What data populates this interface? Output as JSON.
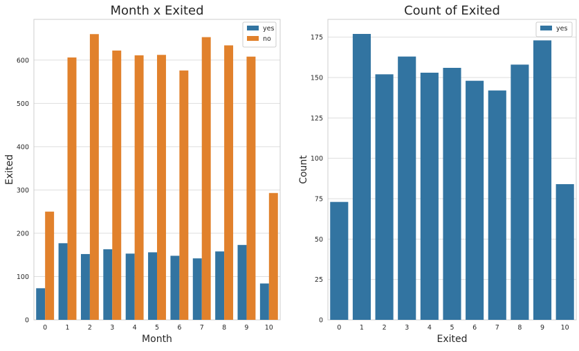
{
  "chart_data": [
    {
      "type": "bar",
      "title": "Month x Exited",
      "xlabel": "Month",
      "ylabel": "Exited",
      "categories": [
        "0",
        "1",
        "2",
        "3",
        "4",
        "5",
        "6",
        "7",
        "8",
        "9",
        "10"
      ],
      "series": [
        {
          "name": "yes",
          "color": "#3274a1",
          "values": [
            73,
            177,
            152,
            163,
            153,
            156,
            148,
            142,
            158,
            173,
            84
          ]
        },
        {
          "name": "no",
          "color": "#e1812c",
          "values": [
            250,
            606,
            660,
            622,
            611,
            612,
            576,
            653,
            634,
            608,
            293
          ]
        }
      ],
      "ylim": [
        0,
        694
      ],
      "yticks": [
        0,
        100,
        200,
        300,
        400,
        500,
        600
      ],
      "grid": true,
      "legend": "top-right"
    },
    {
      "type": "bar",
      "title": "Count of Exited",
      "xlabel": "Exited",
      "ylabel": "Count",
      "categories": [
        "0",
        "1",
        "2",
        "3",
        "4",
        "5",
        "6",
        "7",
        "8",
        "9",
        "10"
      ],
      "series": [
        {
          "name": "yes",
          "color": "#3274a1",
          "values": [
            73,
            177,
            152,
            163,
            153,
            156,
            148,
            142,
            158,
            173,
            84
          ]
        }
      ],
      "ylim": [
        0,
        186
      ],
      "yticks": [
        0,
        25,
        50,
        75,
        100,
        125,
        150,
        175
      ],
      "grid": true,
      "legend": "top-right"
    }
  ]
}
